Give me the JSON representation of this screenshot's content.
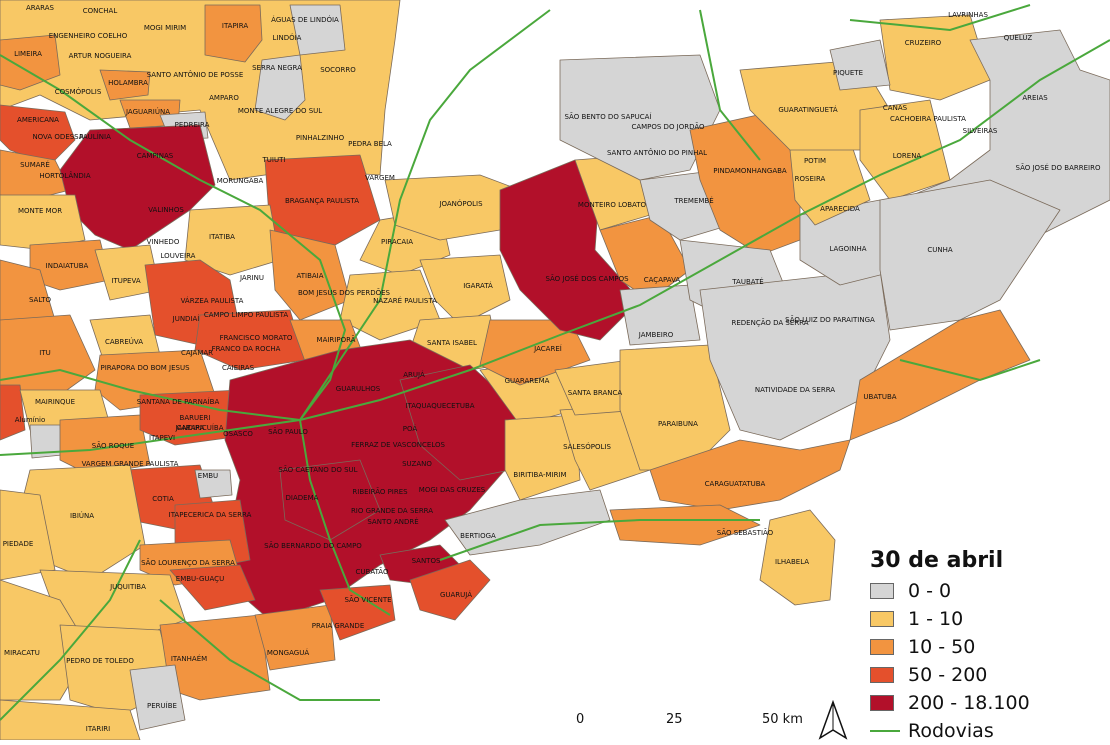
{
  "legend": {
    "title": "30 de abril",
    "classes": [
      {
        "label": "0 - 0",
        "color": "#d5d5d5"
      },
      {
        "label": "1 - 10",
        "color": "#f8c865"
      },
      {
        "label": "10 - 50",
        "color": "#f29440"
      },
      {
        "label": "50 - 200",
        "color": "#e4502c"
      },
      {
        "label": "200 - 18.100",
        "color": "#b2102a"
      }
    ],
    "roads_label": "Rodovias",
    "roads_color": "#4aa83c"
  },
  "scale": {
    "labels": [
      "0",
      "25",
      "50 km"
    ]
  },
  "municipalities": [
    "ARARAS",
    "CONCHAL",
    "MOGI MIRIM",
    "ITAPIRA",
    "ÁGUAS DE LINDÓIA",
    "ENGENHEIRO COELHO",
    "LINDÓIA",
    "LIMEIRA",
    "ARTUR NOGUEIRA",
    "SANTO ANTÔNIO DE POSSE",
    "SERRA NEGRA",
    "SOCORRO",
    "COSMÓPOLIS",
    "HOLAMBRA",
    "AMPARO",
    "JAGUARIÚNA",
    "MONTE ALEGRE DO SUL",
    "AMERICANA",
    "PEDREIRA",
    "NOVA ODESSA",
    "PAULÍNIA",
    "PINHALZINHO",
    "PEDRA BELA",
    "CAMPINAS",
    "SUMARÉ",
    "HORTOLÂNDIA",
    "TUIUTI",
    "MORUNGABA",
    "VARGEM",
    "MONTE MOR",
    "VALINHOS",
    "BRAGANÇA PAULISTA",
    "JOANÓPOLIS",
    "VINHEDO",
    "ITATIBA",
    "INDAIATUBA",
    "LOUVEIRA",
    "PIRACAIA",
    "ITUPEVA",
    "JARINU",
    "ATIBAIA",
    "SALTO",
    "VÁRZEA PAULISTA",
    "BOM JESUS DOS PERDÕES",
    "NAZARÉ PAULISTA",
    "IGARATÁ",
    "JUNDIAÍ",
    "CAMPO LIMPO PAULISTA",
    "CABREÚVA",
    "FRANCISCO MORATO",
    "FRANCO DA ROCHA",
    "MAIRIPORÃ",
    "SANTA ISABEL",
    "ITU",
    "CAJAMAR",
    "CAIEIRAS",
    "PIRAPORA DO BOM JESUS",
    "ARUJÁ",
    "JACAREÍ",
    "GUARULHOS",
    "MAIRINQUE",
    "SANTANA DE PARNAÍBA",
    "ITAQUAQUECETUBA",
    "GUARAREMA",
    "SANTA BRANCA",
    "BARUERI",
    "Alumínio",
    "JANDIRA",
    "CARAPICUÍBA",
    "ITAPEVI",
    "OSASCO",
    "SÃO PAULO",
    "POÁ",
    "SÃO ROQUE",
    "FERRAZ DE VASCONCELOS",
    "SALESÓPOLIS",
    "PARAIBUNA",
    "VARGEM GRANDE PAULISTA",
    "SUZANO",
    "SÃO CAETANO DO SUL",
    "EMBU",
    "BIRITIBA-MIRIM",
    "MOGI DAS CRUZES",
    "COTIA",
    "DIADEMA",
    "RIBEIRÃO PIRES",
    "ITAPECERICA DA SERRA",
    "RIO GRANDE DA SERRA",
    "SANTO ANDRÉ",
    "IBIÚNA",
    "SÃO BERNARDO DO CAMPO",
    "BERTIOGA",
    "PIEDADE",
    "SÃO LOURENÇO DA SERRA",
    "SANTOS",
    "EMBU-GUAÇU",
    "CUBATÃO",
    "JUQUITIBA",
    "GUARUJÁ",
    "SÃO VICENTE",
    "PRAIA GRANDE",
    "MIRACATU",
    "ITANHAÉM",
    "MONGAGUÁ",
    "PEDRO DE TOLEDO",
    "PERUÍBE",
    "ITARIRI",
    "SÃO JOSÉ DOS CAMPOS",
    "MONTEIRO LOBATO",
    "CAÇAPAVA",
    "JAMBEIRO",
    "SÃO BENTO DO SAPUCAÍ",
    "CAMPOS DO JORDÃO",
    "SANTO ANTÔNIO DO PINHAL",
    "TREMEMBÉ",
    "TAUBATÉ",
    "REDENÇÃO DA SERRA",
    "SÃO LUIZ DO PARAITINGA",
    "NATIVIDADE DA SERRA",
    "UBATUBA",
    "CARAGUATATUBA",
    "SÃO SEBASTIÃO",
    "ILHABELA",
    "PINDAMONHANGABA",
    "GUARATINGUETÁ",
    "POTIM",
    "ROSEIRA",
    "APARECIDA",
    "LAGOINHA",
    "CUNHA",
    "LORENA",
    "PIQUETE",
    "CRUZEIRO",
    "LAVRINHAS",
    "QUELUZ",
    "AREIAS",
    "CANAS",
    "CACHOEIRA PAULISTA",
    "SILVEIRAS",
    "SÃO JOSÉ DO BARREIRO"
  ]
}
